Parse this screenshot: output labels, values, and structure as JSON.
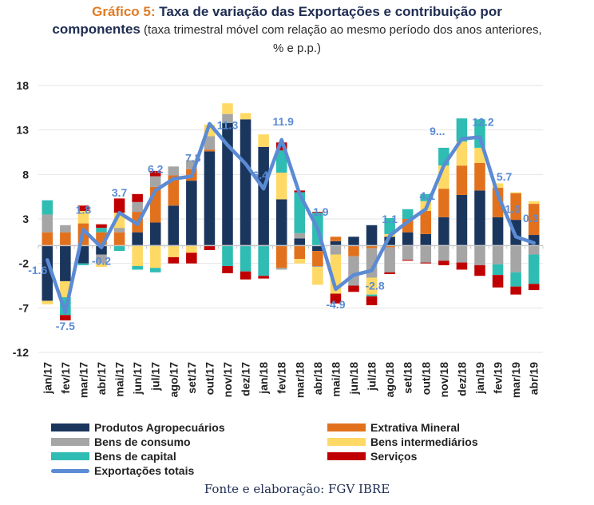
{
  "title": {
    "prefix": "Gráfico 5:",
    "main": " Taxa de variação das Exportações e contribuição por",
    "main2": "componentes",
    "subtitle": " (taxa trimestral móvel com relação ao mesmo período dos anos anteriores, % e p.p.)"
  },
  "source": "Fonte e elaboração: FGV IBRE",
  "chart_data": {
    "type": "bar",
    "stacked": true,
    "title": "Gráfico 5: Taxa de variação das Exportações e contribuição por componentes (taxa trimestral móvel com relação ao mesmo período dos anos anteriores, % e p.p.)",
    "xlabel": "",
    "ylabel": "",
    "ylim": [
      -12,
      18
    ],
    "yticks": [
      18,
      13,
      8,
      3,
      -2,
      -7,
      -12
    ],
    "grid": true,
    "legend_position": "bottom",
    "categories": [
      "jan/17",
      "fev/17",
      "mar/17",
      "abr/17",
      "mai/17",
      "jun/17",
      "jul/17",
      "ago/17",
      "set/17",
      "out/17",
      "nov/17",
      "dez/17",
      "jan/18",
      "fev/18",
      "mar/18",
      "abr/18",
      "mai/18",
      "jun/18",
      "jul/18",
      "ago/18",
      "set/18",
      "out/18",
      "nov/18",
      "dez/18",
      "jan/19",
      "fev/19",
      "mar/19",
      "abr/19"
    ],
    "series": [
      {
        "name": "Produtos Agropecuários",
        "color": "#1b365d",
        "values": [
          -6.2,
          -4.0,
          -2.0,
          -1.0,
          0.0,
          1.5,
          2.6,
          4.5,
          7.3,
          10.6,
          13.8,
          14.2,
          11.1,
          5.2,
          0.8,
          -0.6,
          0.5,
          1.0,
          2.3,
          1.0,
          1.5,
          1.3,
          3.2,
          5.7,
          6.2,
          3.2,
          2.9,
          1.2
        ]
      },
      {
        "name": "Extrativa Mineral",
        "color": "#e2711d",
        "values": [
          1.5,
          1.5,
          2.5,
          1.5,
          1.5,
          2.3,
          4.0,
          3.4,
          1.3,
          0.2,
          0.0,
          0.0,
          0.0,
          -2.5,
          -1.5,
          -1.7,
          0.5,
          -1.2,
          -0.3,
          -0.2,
          1.5,
          2.6,
          3.2,
          3.3,
          3.1,
          3.3,
          3.0,
          3.5
        ]
      },
      {
        "name": "Bens de consumo",
        "color": "#a5a5a5",
        "values": [
          2.0,
          0.8,
          0.0,
          -1.0,
          0.5,
          1.1,
          1.2,
          1.0,
          1.0,
          1.5,
          1.0,
          0.0,
          0.0,
          -0.2,
          0.6,
          -0.1,
          -1.0,
          -3.3,
          -3.3,
          -2.8,
          -1.6,
          -1.9,
          -1.7,
          -1.9,
          -2.2,
          -2.1,
          -3.0,
          -1.0
        ]
      },
      {
        "name": "Bens intermediários",
        "color": "#ffd966",
        "values": [
          -0.4,
          -1.8,
          1.4,
          -0.4,
          1.7,
          -2.3,
          -2.5,
          -1.3,
          -0.8,
          1.3,
          1.2,
          0.7,
          1.4,
          3.0,
          -0.5,
          -2.0,
          -4.4,
          0.0,
          -1.9,
          0.3,
          0.0,
          1.1,
          2.6,
          2.7,
          1.7,
          0.5,
          0.1,
          0.3
        ]
      },
      {
        "name": "Bens de capital",
        "color": "#2ebcb3",
        "values": [
          1.6,
          -2.0,
          -0.2,
          0.5,
          -0.6,
          -0.4,
          -0.5,
          0.0,
          0.0,
          0.0,
          -2.3,
          -2.9,
          -3.4,
          2.5,
          4.6,
          3.7,
          0.0,
          0.0,
          -0.2,
          1.8,
          1.1,
          0.8,
          2.0,
          2.6,
          3.2,
          -1.2,
          -1.6,
          -3.3
        ]
      },
      {
        "name": "Serviços",
        "color": "#c00000",
        "values": [
          0.0,
          -0.6,
          0.6,
          0.4,
          1.6,
          0.9,
          0.6,
          -0.7,
          -1.2,
          -0.5,
          -0.8,
          -0.9,
          -0.3,
          0.9,
          0.2,
          0.1,
          -1.1,
          -0.7,
          -1.0,
          -0.2,
          -0.1,
          -0.1,
          -0.5,
          -0.8,
          -1.2,
          -1.4,
          -0.9,
          -0.7
        ]
      }
    ],
    "line": {
      "name": "Exportações totais",
      "color": "#5b8bd4",
      "values": [
        -1.6,
        -7.5,
        1.8,
        -0.2,
        3.7,
        2.4,
        6.2,
        7.5,
        7.8,
        13.7,
        11.3,
        9.2,
        6.4,
        11.9,
        5.8,
        1.9,
        -4.9,
        -3.3,
        -2.8,
        1.1,
        2.7,
        4.1,
        9.0,
        12.0,
        12.2,
        5.7,
        1.0,
        0.3
      ]
    },
    "data_labels": [
      {
        "category": "jan/17",
        "text": "-1.6"
      },
      {
        "category": "fev/17",
        "text": "-7.5"
      },
      {
        "category": "mar/17",
        "text": "1.8"
      },
      {
        "category": "abr/17",
        "text": "-0.2"
      },
      {
        "category": "mai/17",
        "text": "3.7"
      },
      {
        "category": "jul/17",
        "text": "6.2"
      },
      {
        "category": "set/17",
        "text": "7.8"
      },
      {
        "category": "nov/17",
        "text": "11.3"
      },
      {
        "category": "jan/18",
        "text": "6.4"
      },
      {
        "category": "fev/18",
        "text": "11.9"
      },
      {
        "category": "abr/18",
        "text": "1.9"
      },
      {
        "category": "mai/18",
        "text": "-4.9"
      },
      {
        "category": "jul/18",
        "text": "-2.8"
      },
      {
        "category": "ago/18",
        "text": "1.1"
      },
      {
        "category": "out/18",
        "text": "4.1"
      },
      {
        "category": "nov/18",
        "text": "9..."
      },
      {
        "category": "jan/19",
        "text": "12.2"
      },
      {
        "category": "fev/19",
        "text": "5.7"
      },
      {
        "category": "mar/19",
        "text": "1.0"
      },
      {
        "category": "abr/19",
        "text": "0.3"
      }
    ]
  },
  "legend": [
    {
      "label": "Produtos Agropecuários",
      "color": "#1b365d",
      "kind": "bar"
    },
    {
      "label": "Extrativa Mineral",
      "color": "#e2711d",
      "kind": "bar"
    },
    {
      "label": "Bens de consumo",
      "color": "#a5a5a5",
      "kind": "bar"
    },
    {
      "label": "Bens intermediários",
      "color": "#ffd966",
      "kind": "bar"
    },
    {
      "label": "Bens de capital",
      "color": "#2ebcb3",
      "kind": "bar"
    },
    {
      "label": "Serviços",
      "color": "#c00000",
      "kind": "bar"
    },
    {
      "label": "Exportações totais",
      "color": "#5b8bd4",
      "kind": "line"
    }
  ]
}
